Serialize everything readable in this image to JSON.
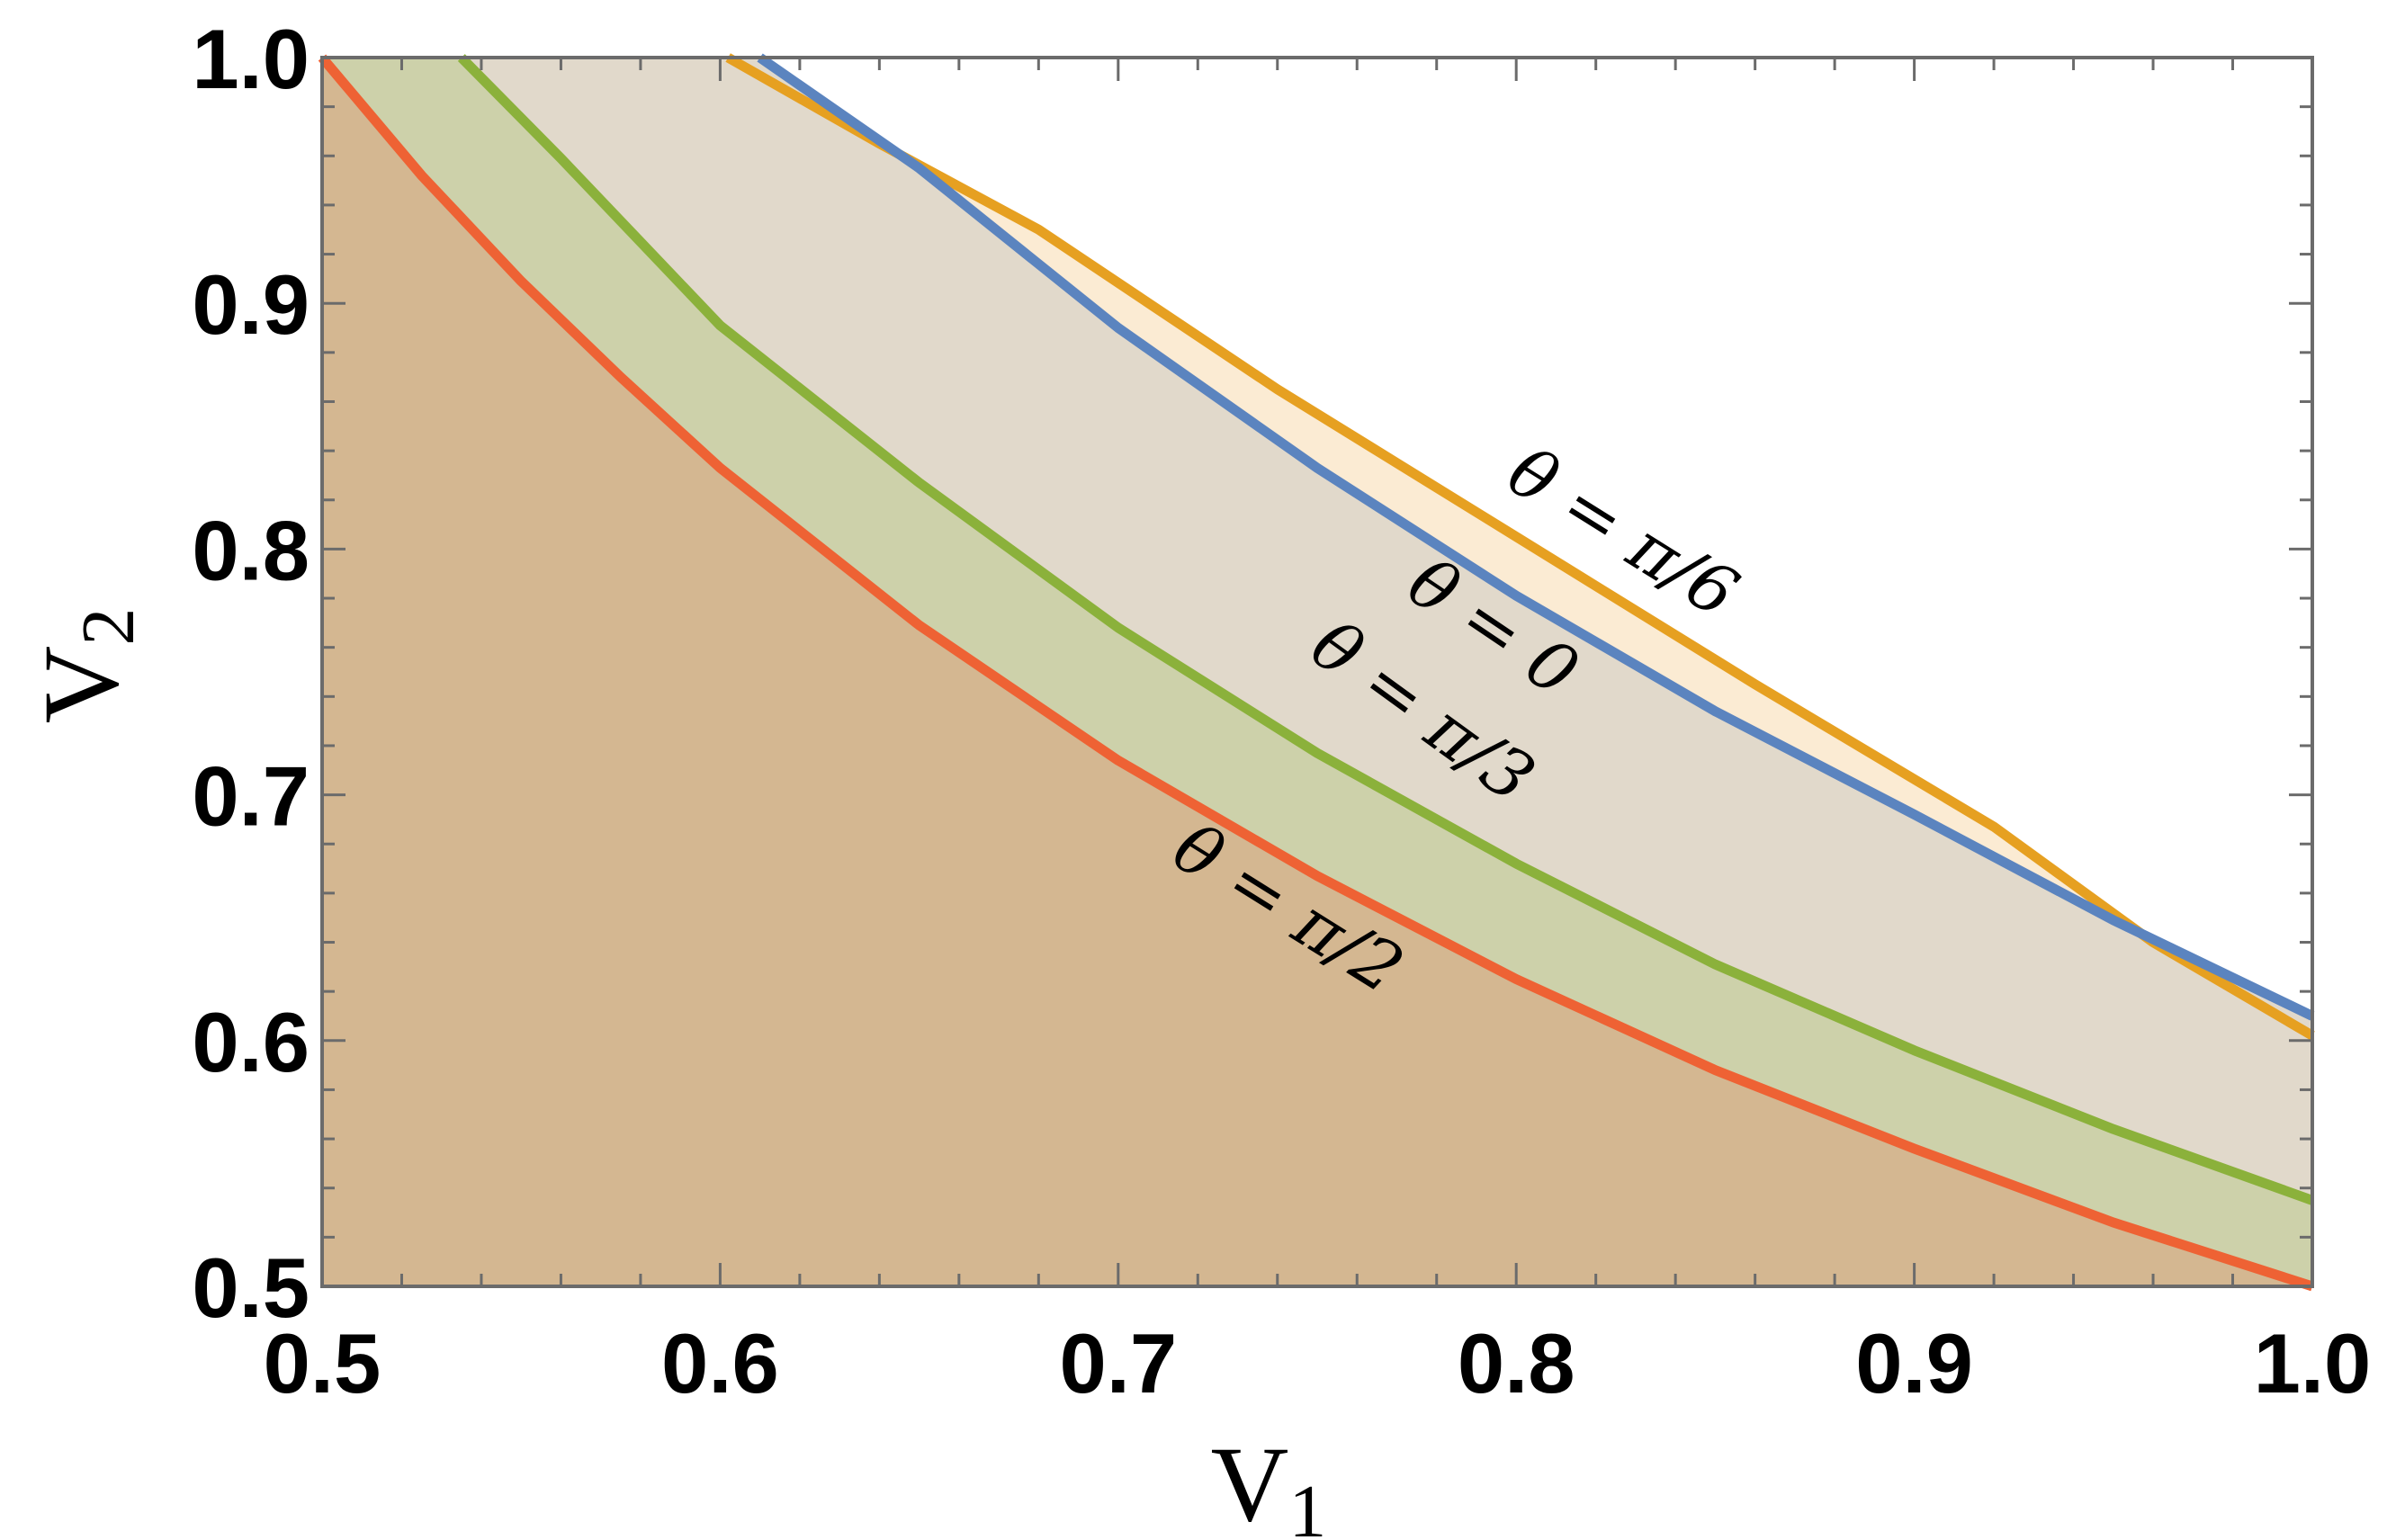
{
  "chart_data": {
    "type": "area",
    "title": "",
    "xlabel": "V",
    "xlabel_sub": "1",
    "ylabel": "V",
    "ylabel_sub": "2",
    "xlim": [
      0.5,
      1.0
    ],
    "ylim": [
      0.5,
      1.0
    ],
    "xticks": [
      "0.5",
      "0.6",
      "0.7",
      "0.8",
      "0.9",
      "1.0"
    ],
    "yticks": [
      "0.5",
      "0.6",
      "0.7",
      "0.8",
      "0.9",
      "1.0"
    ],
    "xtick_values": [
      0.5,
      0.6,
      0.7,
      0.8,
      0.9,
      1.0
    ],
    "ytick_values": [
      0.5,
      0.6,
      0.7,
      0.8,
      0.9,
      1.0
    ],
    "grid": false,
    "series": [
      {
        "label": "θ = π/6",
        "color": "#E6A021",
        "fill": "#FBEBD3",
        "x": [
          0.602,
          0.64,
          0.68,
          0.74,
          0.8,
          0.86,
          0.92,
          0.96,
          1.0
        ],
        "y": [
          1.0,
          0.965,
          0.93,
          0.865,
          0.805,
          0.745,
          0.687,
          0.64,
          0.602
        ]
      },
      {
        "label": "θ = 0",
        "color": "#5B84BF",
        "fill": "#E1D9CB",
        "x": [
          0.61,
          0.65,
          0.7,
          0.75,
          0.8,
          0.85,
          0.9,
          0.95,
          1.0
        ],
        "y": [
          1.0,
          0.955,
          0.89,
          0.833,
          0.781,
          0.734,
          0.692,
          0.649,
          0.61
        ]
      },
      {
        "label": "θ = π/3",
        "color": "#8BB13B",
        "fill": "#CDD1AA",
        "x": [
          0.535,
          0.56,
          0.6,
          0.65,
          0.7,
          0.75,
          0.8,
          0.85,
          0.9,
          0.95,
          1.0
        ],
        "y": [
          1.0,
          0.959,
          0.891,
          0.827,
          0.768,
          0.717,
          0.672,
          0.631,
          0.596,
          0.564,
          0.535
        ]
      },
      {
        "label": "θ = π/2",
        "color": "#EE6234",
        "fill": "#D4B791",
        "x": [
          0.5,
          0.525,
          0.55,
          0.575,
          0.6,
          0.65,
          0.7,
          0.75,
          0.8,
          0.85,
          0.9,
          0.95,
          1.0
        ],
        "y": [
          1.0,
          0.952,
          0.909,
          0.87,
          0.833,
          0.769,
          0.714,
          0.667,
          0.625,
          0.588,
          0.556,
          0.526,
          0.5
        ]
      }
    ]
  }
}
